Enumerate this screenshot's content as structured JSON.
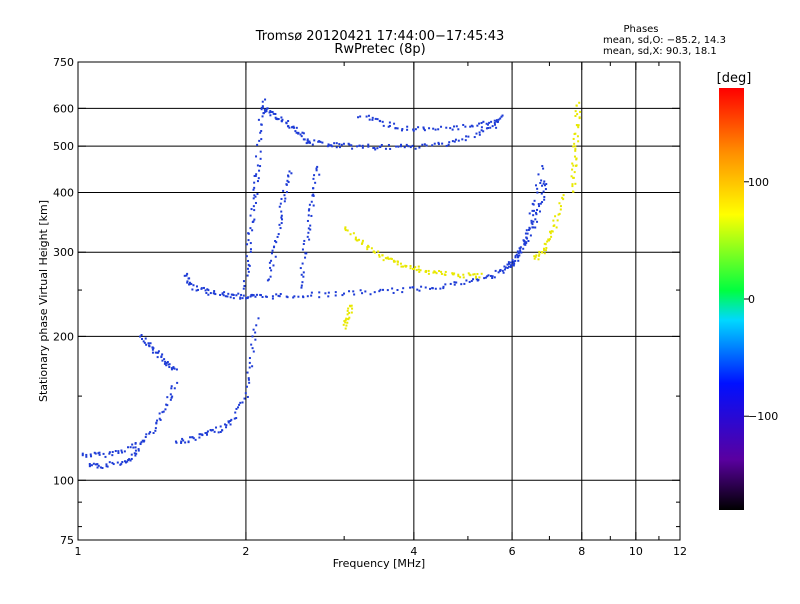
{
  "chart_data": {
    "type": "scatter",
    "title": "Tromsø 20120421 17:44:00−17:45:43",
    "subtitle": "RwPretec (8p)",
    "xlabel": "Frequency [MHz]",
    "ylabel": "Stationary phase Virtual Height [km]",
    "x_scale": "log",
    "y_scale": "log",
    "xlim": [
      1,
      12
    ],
    "ylim": [
      75,
      750
    ],
    "grid": true,
    "x_ticks": [
      "1",
      "2",
      "4",
      "6",
      "8",
      "10",
      "12"
    ],
    "y_ticks": [
      "75",
      "100",
      "200",
      "300",
      "400",
      "500",
      "600",
      "750"
    ],
    "x_minor_ticks": [
      3,
      5,
      7,
      9,
      11
    ],
    "y_minor_ticks": [
      80,
      90,
      150,
      250
    ],
    "x_gridlines": [
      2,
      4,
      6,
      8,
      10
    ],
    "y_gridlines": [
      100,
      200,
      300,
      400,
      500,
      600
    ],
    "legend": {
      "heading": "Phases",
      "lines": [
        "mean, sd,O: −85.2, 14.3",
        "mean, sd,X:  90.3, 18.1"
      ],
      "placement": "top-right"
    },
    "colorbar": {
      "label": "[deg]",
      "range": [
        -180,
        180
      ],
      "ticks": [
        "100",
        "0",
        "−100"
      ],
      "tick_values": [
        100,
        0,
        -100
      ]
    },
    "series": [
      {
        "name": "O",
        "mean": -85.2,
        "sd": 14.3,
        "color": "#1e3cd6",
        "traces": [
          {
            "x": [
              1.02,
              1.1,
              1.2,
              1.3,
              1.38,
              1.45,
              1.5
            ],
            "y": [
              113,
              113,
              115,
              120,
              130,
              145,
              160
            ]
          },
          {
            "x": [
              1.05,
              1.1,
              1.2,
              1.25,
              1.3
            ],
            "y": [
              107,
              107,
              109,
              112,
              120
            ]
          },
          {
            "x": [
              1.3,
              1.35,
              1.4,
              1.45,
              1.5
            ],
            "y": [
              200,
              190,
              182,
              175,
              170
            ]
          },
          {
            "x": [
              1.5,
              1.6,
              1.7,
              1.8,
              1.9,
              2.0,
              2.05,
              2.1
            ],
            "y": [
              120,
              122,
              125,
              128,
              133,
              150,
              180,
              220
            ]
          },
          {
            "x": [
              1.55,
              1.6,
              1.7,
              1.8,
              1.9,
              2.0,
              2.1
            ],
            "y": [
              270,
              255,
              248,
              245,
              243,
              242,
              242
            ]
          },
          {
            "x": [
              2.1,
              2.3,
              2.6,
              3.0,
              3.5,
              4.0,
              4.5,
              5.0,
              5.5,
              5.8,
              6.0,
              6.2,
              6.4,
              6.6,
              6.8,
              6.9
            ],
            "y": [
              242,
              243,
              244,
              246,
              248,
              251,
              255,
              260,
              267,
              275,
              285,
              300,
              320,
              350,
              390,
              430
            ]
          },
          {
            "x": [
              2.0,
              2.02,
              2.05,
              2.08,
              2.1,
              2.12,
              2.15
            ],
            "y": [
              250,
              300,
              350,
              400,
              450,
              550,
              630
            ]
          },
          {
            "x": [
              2.2,
              2.25,
              2.3,
              2.35,
              2.4
            ],
            "y": [
              260,
              300,
              350,
              400,
              450
            ]
          },
          {
            "x": [
              2.5,
              2.55,
              2.6,
              2.65,
              2.7
            ],
            "y": [
              250,
              300,
              350,
              400,
              460
            ]
          },
          {
            "x": [
              2.6,
              2.8,
              3.0,
              3.3,
              3.6,
              4.0,
              4.5,
              5.0,
              5.5,
              5.8
            ],
            "y": [
              510,
              505,
              500,
              498,
              497,
              498,
              505,
              520,
              545,
              580
            ]
          },
          {
            "x": [
              3.2,
              3.5,
              3.8,
              4.2,
              4.8,
              5.3,
              5.7
            ],
            "y": [
              580,
              560,
              545,
              540,
              545,
              555,
              570
            ]
          },
          {
            "x": [
              2.15,
              2.2,
              2.3,
              2.4,
              2.5,
              2.6
            ],
            "y": [
              600,
              590,
              570,
              550,
              530,
              510
            ]
          },
          {
            "x": [
              6.0,
              6.2,
              6.4,
              6.6,
              6.8
            ],
            "y": [
              280,
              300,
              330,
              380,
              460
            ]
          }
        ]
      },
      {
        "name": "X",
        "mean": 90.3,
        "sd": 18.1,
        "color": "#e8e800",
        "traces": [
          {
            "x": [
              3.0,
              3.2,
              3.4,
              3.6,
              3.8,
              4.0,
              4.3,
              4.6,
              5.0,
              5.3
            ],
            "y": [
              340,
              315,
              300,
              290,
              283,
              278,
              272,
              270,
              268,
              267
            ]
          },
          {
            "x": [
              6.6,
              6.8,
              7.0,
              7.2,
              7.4
            ],
            "y": [
              290,
              300,
              320,
              350,
              400
            ]
          },
          {
            "x": [
              7.7,
              7.75,
              7.8,
              7.85,
              7.9
            ],
            "y": [
              400,
              450,
              500,
              560,
              620
            ]
          },
          {
            "x": [
              3.0,
              3.05,
              3.1
            ],
            "y": [
              210,
              220,
              235
            ]
          }
        ]
      }
    ]
  }
}
